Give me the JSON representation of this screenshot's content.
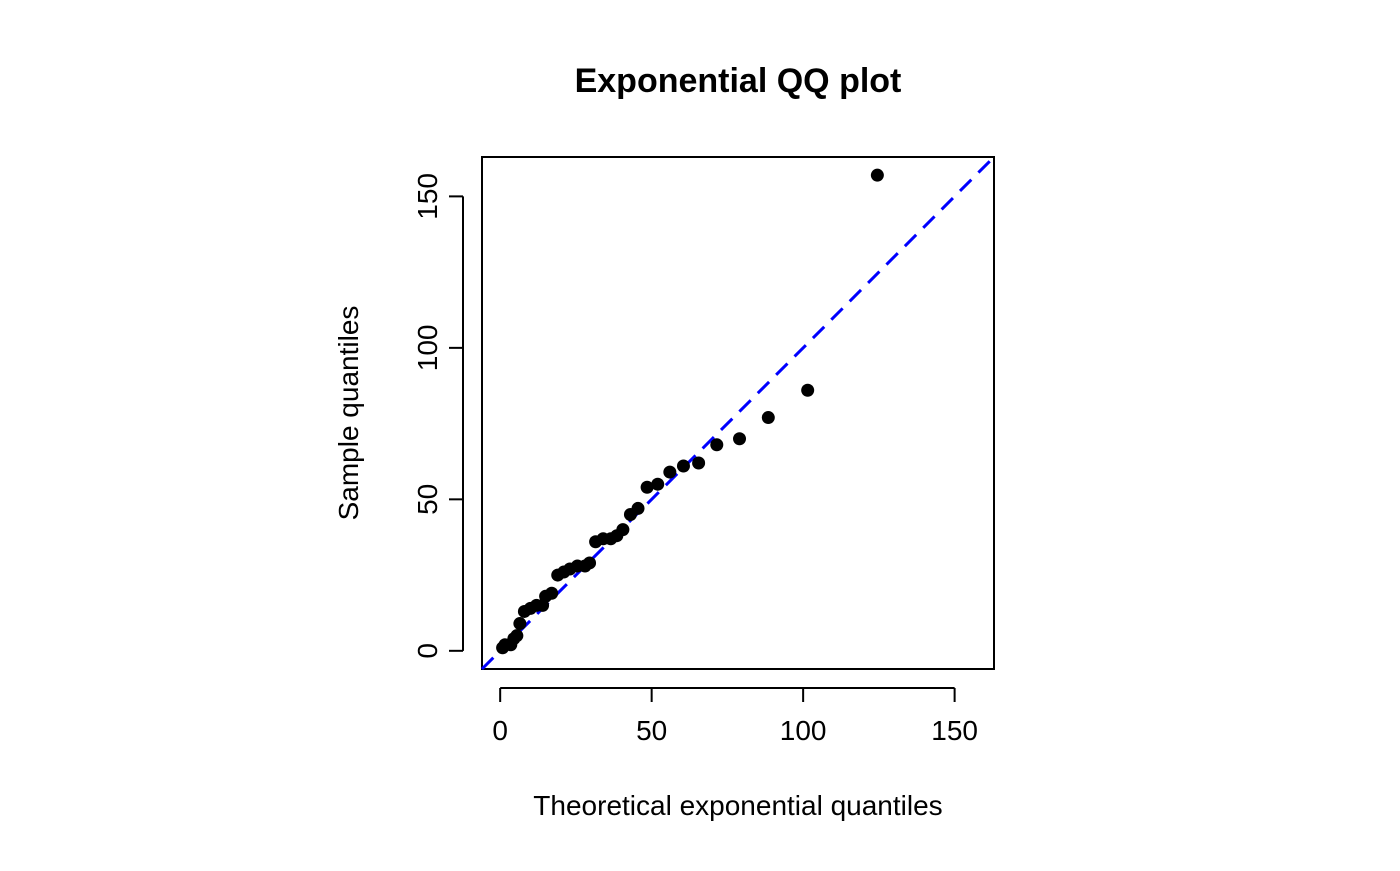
{
  "chart_data": {
    "type": "scatter",
    "title": "Exponential QQ plot",
    "xlabel": "Theoretical exponential quantiles",
    "ylabel": "Sample quantiles",
    "xlim": [
      -6,
      163
    ],
    "ylim": [
      -6,
      163
    ],
    "x_ticks": [
      0,
      50,
      100,
      150
    ],
    "y_ticks": [
      0,
      50,
      100,
      150
    ],
    "x_tick_labels": [
      "0",
      "50",
      "100",
      "150"
    ],
    "y_tick_labels": [
      "0",
      "50",
      "100",
      "150"
    ],
    "grid": false,
    "legend": "none",
    "reference_line": {
      "intercept": 0,
      "slope": 1,
      "style": "dashed",
      "color": "#0000ff"
    },
    "point_color": "#000000",
    "points": [
      {
        "x": 0.8,
        "y": 1
      },
      {
        "x": 1.6,
        "y": 2
      },
      {
        "x": 3.5,
        "y": 2
      },
      {
        "x": 4.5,
        "y": 4
      },
      {
        "x": 5.5,
        "y": 5
      },
      {
        "x": 6.5,
        "y": 9
      },
      {
        "x": 8.0,
        "y": 13
      },
      {
        "x": 10.0,
        "y": 14
      },
      {
        "x": 12.0,
        "y": 15
      },
      {
        "x": 14.0,
        "y": 15
      },
      {
        "x": 15.0,
        "y": 18
      },
      {
        "x": 17.0,
        "y": 19
      },
      {
        "x": 19.0,
        "y": 25
      },
      {
        "x": 21.0,
        "y": 26
      },
      {
        "x": 23.0,
        "y": 27
      },
      {
        "x": 25.5,
        "y": 28
      },
      {
        "x": 28.0,
        "y": 28
      },
      {
        "x": 29.5,
        "y": 29
      },
      {
        "x": 31.5,
        "y": 36
      },
      {
        "x": 34.0,
        "y": 37
      },
      {
        "x": 36.5,
        "y": 37
      },
      {
        "x": 38.5,
        "y": 38
      },
      {
        "x": 40.5,
        "y": 40
      },
      {
        "x": 43.0,
        "y": 45
      },
      {
        "x": 45.5,
        "y": 47
      },
      {
        "x": 48.5,
        "y": 54
      },
      {
        "x": 52.0,
        "y": 55
      },
      {
        "x": 56.0,
        "y": 59
      },
      {
        "x": 60.5,
        "y": 61
      },
      {
        "x": 65.5,
        "y": 62
      },
      {
        "x": 71.5,
        "y": 68
      },
      {
        "x": 79.0,
        "y": 70
      },
      {
        "x": 88.5,
        "y": 77
      },
      {
        "x": 101.5,
        "y": 86
      },
      {
        "x": 124.5,
        "y": 157
      }
    ]
  }
}
